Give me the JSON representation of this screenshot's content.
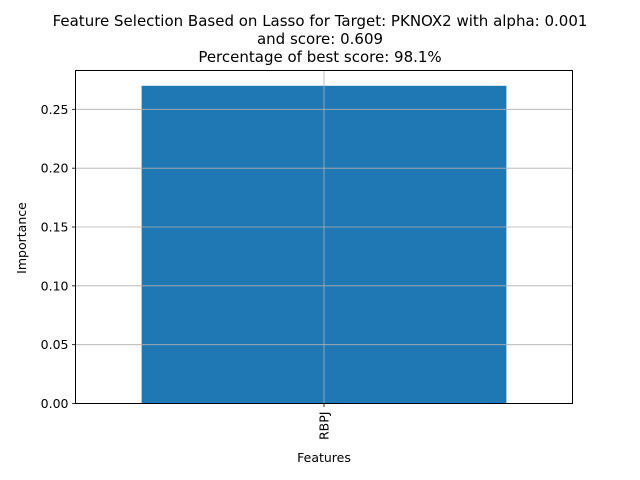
{
  "chart_data": {
    "type": "bar",
    "title_lines": [
      "Feature Selection Based on Lasso for Target: PKNOX2 with alpha: 0.001",
      "and score: 0.609",
      "Percentage of best score: 98.1%"
    ],
    "xlabel": "Features",
    "ylabel": "Importance",
    "categories": [
      "RBPJ"
    ],
    "values": [
      0.27
    ],
    "ylim": [
      0,
      0.283
    ],
    "yticks": [
      "0.00",
      "0.05",
      "0.10",
      "0.15",
      "0.20",
      "0.25"
    ],
    "grid": true,
    "bar_color": "#1f77b4",
    "grid_color": "#b0b0b0"
  }
}
